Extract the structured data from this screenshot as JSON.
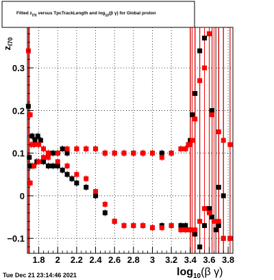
{
  "chart_data": {
    "type": "scatter",
    "title": "Fitted  z_{I70}  versus TpcTrackLength and log_{10}(βγ) for Global proton",
    "title_parts": {
      "pre": "Fitted  z",
      "sub1": "I70",
      "mid": "  versus TpcTrackLength and log",
      "sub2": "10",
      "post": "(β γ) for Global proton"
    },
    "ylabel_main": "z",
    "ylabel_sub": "I70",
    "xlabel_main": "log",
    "xlabel_sub": "10",
    "xlabel_post": "(β γ)",
    "x_range": [
      1.68,
      3.85
    ],
    "y_range": [
      -0.135,
      0.395
    ],
    "x_ticks": [
      1.8,
      2,
      2.2,
      2.4,
      2.6,
      2.8,
      3,
      3.2,
      3.4,
      3.6,
      3.8
    ],
    "x_tick_labels": [
      "1.8",
      "2",
      "2.2",
      "2.4",
      "2.6",
      "2.8",
      "3",
      "3.2",
      "3.4",
      "3.6",
      "3.8"
    ],
    "y_ticks": [
      -0.1,
      0,
      0.1,
      0.2,
      0.3
    ],
    "y_tick_labels": [
      "−0.1",
      "0",
      "0.1",
      "0.2",
      "0.3"
    ],
    "grid": true,
    "colors": {
      "black": "#000000",
      "red": "#ff0000"
    },
    "series": [
      {
        "color": "#000000",
        "points": [
          [
            1.69,
            0.21
          ],
          [
            1.71,
            0.07
          ],
          [
            1.73,
            0.14
          ],
          [
            1.76,
            0.13
          ],
          [
            1.79,
            0.14
          ],
          [
            1.82,
            0.13
          ],
          [
            1.85,
            0.11
          ],
          [
            1.9,
            0.1
          ],
          [
            1.95,
            0.1
          ],
          [
            2.0,
            0.1
          ],
          [
            2.05,
            0.11
          ],
          [
            2.1,
            0.1
          ],
          [
            2.2,
            0.11
          ],
          [
            2.3,
            0.11
          ],
          [
            2.4,
            0.11
          ],
          [
            2.5,
            0.1
          ],
          [
            2.6,
            0.1
          ],
          [
            2.7,
            0.1
          ],
          [
            2.8,
            0.1
          ],
          [
            2.9,
            0.1
          ],
          [
            3.0,
            0.1
          ],
          [
            3.1,
            0.1
          ],
          [
            3.2,
            0.1
          ],
          [
            3.3,
            0.11
          ],
          [
            3.35,
            0.11
          ],
          [
            3.38,
            0.12
          ],
          [
            3.4,
            0.13
          ],
          [
            3.42,
            0.19
          ],
          [
            3.45,
            0.24
          ],
          [
            3.5,
            0.34
          ],
          [
            3.55,
            0.37
          ],
          [
            3.6,
            0.38
          ],
          [
            3.63,
            0.2
          ],
          [
            3.7,
            0.02
          ],
          [
            3.75,
            0.0
          ],
          [
            1.7,
            0.09
          ],
          [
            1.73,
            0.07
          ],
          [
            1.78,
            0.08
          ],
          [
            1.85,
            0.08
          ],
          [
            1.9,
            0.07
          ],
          [
            1.95,
            0.07
          ],
          [
            2.0,
            0.07
          ],
          [
            2.05,
            0.06
          ],
          [
            2.1,
            0.05
          ],
          [
            2.15,
            0.04
          ],
          [
            2.2,
            0.03
          ],
          [
            2.3,
            0.02
          ],
          [
            2.4,
            0.0
          ],
          [
            2.5,
            -0.04
          ],
          [
            2.6,
            -0.06
          ],
          [
            2.7,
            -0.07
          ],
          [
            2.8,
            -0.07
          ],
          [
            2.9,
            -0.07
          ],
          [
            3.0,
            -0.075
          ],
          [
            3.1,
            -0.07
          ],
          [
            3.2,
            -0.07
          ],
          [
            3.3,
            -0.07
          ],
          [
            3.35,
            -0.07
          ],
          [
            3.4,
            -0.08
          ],
          [
            3.45,
            -0.09
          ],
          [
            3.5,
            -0.12
          ],
          [
            3.55,
            -0.07
          ],
          [
            3.6,
            -0.03
          ],
          [
            3.63,
            -0.05
          ],
          [
            3.67,
            -0.08
          ],
          [
            3.7,
            -0.07
          ],
          [
            3.75,
            -0.1
          ],
          [
            3.82,
            -0.1
          ]
        ]
      },
      {
        "color": "#ff0000",
        "points": [
          [
            1.69,
            0.34
          ],
          [
            1.71,
            0.19
          ],
          [
            1.72,
            0.12
          ],
          [
            1.75,
            0.12
          ],
          [
            1.8,
            0.12
          ],
          [
            1.85,
            0.11
          ],
          [
            1.9,
            0.1
          ],
          [
            2.0,
            0.1
          ],
          [
            2.1,
            0.11
          ],
          [
            2.2,
            0.11
          ],
          [
            2.3,
            0.11
          ],
          [
            2.4,
            0.11
          ],
          [
            2.5,
            0.1
          ],
          [
            2.6,
            0.1
          ],
          [
            2.7,
            0.1
          ],
          [
            2.8,
            0.1
          ],
          [
            2.9,
            0.1
          ],
          [
            3.0,
            0.1
          ],
          [
            3.1,
            0.09
          ],
          [
            3.2,
            0.1
          ],
          [
            3.3,
            0.11
          ],
          [
            3.35,
            0.11
          ],
          [
            3.38,
            0.12
          ],
          [
            3.4,
            0.12
          ],
          [
            3.42,
            0.13
          ],
          [
            3.45,
            0.18
          ],
          [
            3.5,
            0.27
          ],
          [
            3.55,
            0.3
          ],
          [
            3.6,
            0.38
          ],
          [
            3.63,
            0.19
          ],
          [
            3.7,
            0.15
          ],
          [
            3.75,
            0.13
          ],
          [
            3.82,
            0.12
          ],
          [
            1.71,
            0.03
          ],
          [
            1.75,
            0.07
          ],
          [
            1.8,
            0.08
          ],
          [
            1.85,
            0.09
          ],
          [
            1.9,
            0.09
          ],
          [
            2.0,
            0.08
          ],
          [
            2.1,
            0.07
          ],
          [
            2.2,
            0.05
          ],
          [
            2.3,
            0.04
          ],
          [
            2.4,
            0.01
          ],
          [
            2.5,
            -0.02
          ],
          [
            2.6,
            -0.06
          ],
          [
            2.7,
            -0.07
          ],
          [
            2.8,
            -0.07
          ],
          [
            2.9,
            -0.07
          ],
          [
            3.0,
            -0.075
          ],
          [
            3.1,
            -0.075
          ],
          [
            3.2,
            -0.07
          ],
          [
            3.3,
            -0.08
          ],
          [
            3.35,
            -0.08
          ],
          [
            3.4,
            -0.08
          ],
          [
            3.45,
            -0.08
          ],
          [
            3.5,
            -0.06
          ],
          [
            3.55,
            -0.03
          ],
          [
            3.6,
            -0.04
          ],
          [
            3.65,
            -0.06
          ],
          [
            3.7,
            -0.06
          ],
          [
            3.75,
            -0.1
          ],
          [
            3.82,
            -0.1
          ]
        ]
      }
    ]
  },
  "footer": {
    "timestamp": "Tue Dec 21 23:14:46 2021"
  }
}
